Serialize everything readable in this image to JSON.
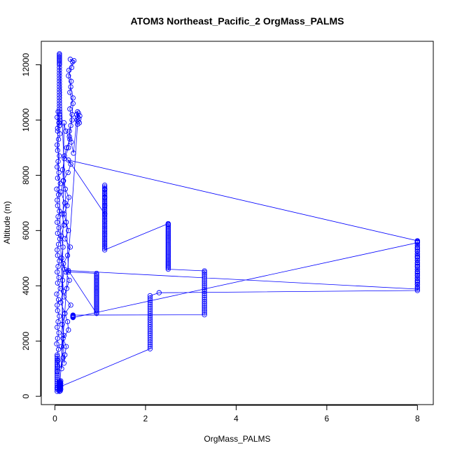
{
  "chart_data": {
    "type": "scatter",
    "style": "points-and-lines",
    "title": "ATOM3 Northeast_Pacific_2 OrgMass_PALMS",
    "xlabel": "OrgMass_PALMS",
    "ylabel": "Altitude (m)",
    "xlim": [
      -0.3,
      8.35
    ],
    "ylim": [
      -300,
      12850
    ],
    "xticks": [
      0,
      2,
      4,
      6,
      8
    ],
    "xtick_labels": [
      "0",
      "2",
      "4",
      "6",
      "8"
    ],
    "yticks": [
      0,
      2000,
      4000,
      6000,
      8000,
      10000,
      12000
    ],
    "ytick_labels": [
      "0",
      "2000",
      "4000",
      "6000",
      "8000",
      "10000",
      "12000"
    ],
    "grid": false,
    "legend": "none",
    "marker": "open-circle",
    "color": "#0000ff",
    "series": [
      {
        "x": [
          0.05,
          0.05,
          0.05,
          0.05,
          0.05,
          0.05,
          0.05,
          0.05,
          0.05,
          0.05,
          0.05,
          0.05,
          0.05,
          0.05,
          0.05,
          0.05,
          0.05,
          0.05,
          0.05,
          0.05,
          2.1,
          2.1,
          2.1,
          2.1,
          2.1,
          2.1,
          2.1,
          2.1,
          2.1,
          2.1,
          2.1,
          2.1,
          2.1,
          2.1,
          2.1,
          2.1,
          2.1,
          2.1,
          2.1,
          2.1,
          2.1,
          2.1,
          2.1,
          2.1,
          2.1,
          2.3,
          8.0,
          8.0,
          8.0,
          8.0,
          8.0,
          8.0,
          8.0,
          8.0,
          8.0,
          8.0,
          8.0,
          8.0,
          8.0,
          8.0,
          8.0,
          8.0,
          8.0,
          8.0,
          8.0,
          8.0,
          0.4,
          0.4,
          0.4,
          0.4,
          0.4,
          0.4,
          0.4,
          0.4,
          0.4,
          0.4,
          3.3,
          3.3,
          3.3,
          3.3,
          3.3,
          3.3,
          3.3,
          3.3,
          3.3,
          3.3,
          3.3,
          3.3,
          3.3,
          3.3,
          3.3,
          3.3,
          3.3,
          3.3,
          3.3,
          3.3,
          3.3,
          3.3,
          3.3,
          3.3,
          2.5,
          2.5,
          2.5,
          2.5,
          2.5,
          2.5,
          2.5,
          2.5,
          2.5,
          2.5,
          2.5,
          2.5,
          2.5,
          2.5,
          2.5,
          2.5,
          2.5,
          2.5,
          2.5,
          2.5,
          2.5,
          2.5,
          2.5,
          2.5,
          2.5,
          2.5,
          2.5,
          2.5,
          2.5,
          2.5,
          2.5,
          2.5,
          2.5,
          2.5,
          2.5,
          1.1,
          1.1,
          1.1,
          1.1,
          1.1,
          1.1,
          1.1,
          1.1,
          1.1,
          1.1,
          1.1,
          1.1,
          1.1,
          1.1,
          1.1,
          1.1,
          1.1,
          1.1,
          1.1,
          1.1,
          1.1,
          1.1,
          1.1,
          1.1,
          1.1,
          1.1,
          1.1,
          1.1,
          1.1,
          1.1,
          1.1,
          1.1,
          1.1,
          1.1,
          1.1,
          1.1,
          1.1,
          1.1,
          1.1,
          1.1,
          1.1,
          1.1,
          1.1,
          1.1,
          0.3,
          8.0,
          8.0,
          8.0,
          8.0,
          8.0,
          8.0,
          8.0,
          8.0,
          8.0,
          8.0,
          8.0,
          8.0,
          8.0,
          8.0,
          8.0,
          8.0,
          8.0,
          8.0,
          8.0,
          8.0,
          8.0,
          8.0,
          8.0,
          0.3,
          0.92,
          0.92,
          0.92,
          0.92,
          0.92,
          0.92,
          0.92,
          0.92,
          0.92,
          0.92,
          0.92,
          0.92,
          0.92,
          0.92,
          0.92,
          0.92,
          0.92,
          0.92,
          0.92,
          0.92,
          0.92,
          0.92,
          0.92,
          0.92,
          0.92,
          0.92,
          0.92,
          0.92,
          0.92,
          0.92,
          0.3,
          0.1,
          0.1,
          0.1,
          0.1,
          0.1,
          0.1,
          0.1,
          0.1,
          0.1,
          0.1,
          0.1,
          0.1,
          0.1,
          0.1,
          0.1,
          0.1,
          0.1,
          0.1,
          0.1,
          0.1,
          0.1,
          0.1,
          0.1,
          0.1,
          0.1,
          0.1,
          0.1,
          0.1,
          0.1,
          0.1,
          0.1
        ],
        "y": [
          180,
          250,
          320,
          390,
          460,
          530,
          600,
          670,
          740,
          810,
          880,
          950,
          1020,
          1090,
          1160,
          1230,
          1300,
          1370,
          1440,
          300,
          1720,
          1800,
          1880,
          1960,
          2040,
          2120,
          2200,
          2280,
          2360,
          2440,
          2520,
          2600,
          2680,
          2760,
          2840,
          2920,
          3000,
          3080,
          3160,
          3240,
          3320,
          3400,
          3480,
          3560,
          3640,
          3750,
          3830,
          3940,
          4050,
          4160,
          4270,
          4380,
          4490,
          4600,
          4710,
          4820,
          4930,
          5040,
          5150,
          5260,
          5370,
          5480,
          5590,
          5630,
          5600,
          5560,
          2850,
          2860,
          2870,
          2880,
          2890,
          2900,
          2910,
          2920,
          2930,
          2940,
          2950,
          3020,
          3090,
          3160,
          3230,
          3300,
          3370,
          3440,
          3510,
          3580,
          3650,
          3720,
          3790,
          3860,
          3930,
          4000,
          4070,
          4140,
          4210,
          4280,
          4350,
          4420,
          4490,
          4540,
          4600,
          4650,
          4700,
          4750,
          4800,
          4850,
          4900,
          4950,
          5000,
          5050,
          5100,
          5150,
          5200,
          5250,
          5300,
          5350,
          5400,
          5450,
          5500,
          5550,
          5600,
          5650,
          5700,
          5750,
          5800,
          5850,
          5900,
          5950,
          6000,
          6050,
          6100,
          6150,
          6200,
          6230,
          6250,
          5300,
          5360,
          5420,
          5480,
          5540,
          5600,
          5660,
          5720,
          5780,
          5840,
          5900,
          5960,
          6020,
          6080,
          6140,
          6200,
          6260,
          6320,
          6380,
          6440,
          6500,
          6560,
          6620,
          6680,
          6740,
          6800,
          6860,
          6920,
          6980,
          7040,
          7100,
          7160,
          7220,
          7280,
          7340,
          7400,
          7460,
          7520,
          7580,
          7640,
          7500,
          7200,
          6900,
          6600,
          8550,
          5630,
          5560,
          5480,
          5400,
          5320,
          5240,
          5160,
          5080,
          5000,
          4920,
          4840,
          4760,
          4680,
          4600,
          4520,
          4440,
          4360,
          4280,
          4200,
          4120,
          4040,
          3960,
          3880,
          4550,
          3000,
          3050,
          3100,
          3150,
          3200,
          3250,
          3300,
          3350,
          3400,
          3450,
          3500,
          3550,
          3600,
          3650,
          3700,
          3750,
          3800,
          3850,
          3900,
          3950,
          4000,
          4050,
          4100,
          4150,
          4200,
          4250,
          4300,
          4350,
          4400,
          4450,
          4500,
          12400,
          12350,
          12300,
          12250,
          12200,
          12150,
          12100,
          12050,
          12000,
          11900,
          11800,
          11700,
          11600,
          11500,
          11400,
          11300,
          11200,
          11100,
          11000,
          10900,
          10800,
          10700,
          10600,
          10500,
          10400,
          10300,
          10200,
          10100,
          10000,
          9900,
          9800
        ]
      },
      {
        "x": [
          0.05,
          0.06,
          0.07,
          0.05,
          0.08,
          0.04,
          0.06,
          0.09,
          0.05,
          0.07,
          0.1,
          0.06,
          0.05,
          0.08,
          0.04,
          0.12,
          0.06,
          0.09,
          0.05,
          0.07,
          0.1,
          0.06,
          0.05,
          0.08,
          0.11,
          0.06,
          0.09,
          0.05,
          0.07,
          0.1,
          0.06,
          0.05,
          0.08,
          0.04,
          0.12,
          0.06,
          0.09,
          0.05,
          0.07,
          0.1,
          0.06,
          0.05,
          0.08,
          0.11,
          0.06,
          0.09,
          0.05,
          0.07,
          0.1,
          0.06,
          0.2,
          0.22,
          0.25,
          0.18,
          0.3,
          0.28,
          0.22,
          0.35,
          0.2,
          0.26,
          0.32,
          0.24,
          0.19,
          0.28,
          0.34,
          0.22,
          0.3,
          0.25,
          0.2,
          0.27,
          0.31,
          0.23,
          0.18,
          0.29,
          0.35,
          0.21,
          0.26,
          0.33,
          0.24,
          0.2,
          0.15,
          0.18,
          0.14,
          0.2,
          0.16,
          0.22,
          0.13,
          0.19,
          0.17,
          0.21,
          0.15,
          0.18,
          0.14,
          0.2,
          0.16,
          0.22,
          0.13,
          0.19,
          0.17,
          0.21,
          0.3,
          0.32,
          0.35,
          0.38,
          0.4,
          0.33,
          0.36,
          0.31,
          0.39,
          0.34,
          0.42,
          0.37,
          0.3,
          0.35,
          0.4,
          0.33,
          0.38,
          0.32,
          0.36,
          0.41,
          0.5,
          0.52,
          0.48,
          0.55,
          0.5,
          0.53,
          0.49,
          0.51,
          0.54,
          0.5,
          0.1,
          0.12,
          0.09,
          0.11,
          0.13,
          0.1,
          0.12,
          0.09,
          0.11,
          0.13,
          0.1,
          0.12,
          0.09,
          0.11,
          0.13,
          0.1,
          0.12,
          0.09,
          0.11,
          0.13
        ],
        "y": [
          900,
          1100,
          1300,
          1500,
          1700,
          1900,
          2100,
          2300,
          2500,
          2700,
          2900,
          3100,
          3300,
          3500,
          3700,
          3900,
          4100,
          4300,
          4500,
          4700,
          4900,
          5100,
          5300,
          5500,
          5700,
          5900,
          6100,
          6300,
          6500,
          6700,
          6900,
          7100,
          7300,
          7500,
          7700,
          7900,
          8100,
          8300,
          8500,
          8700,
          8900,
          9100,
          9300,
          9500,
          9700,
          9900,
          10100,
          10300,
          9800,
          9600,
          1200,
          1500,
          1800,
          2100,
          2400,
          2700,
          3000,
          3300,
          3600,
          3900,
          4200,
          4500,
          4800,
          5100,
          5400,
          5700,
          6000,
          6300,
          6600,
          6900,
          7200,
          7500,
          7800,
          8100,
          8400,
          8700,
          9000,
          9300,
          9600,
          9900,
          1000,
          1400,
          1800,
          2200,
          2600,
          3000,
          3400,
          3800,
          4200,
          4600,
          5000,
          5400,
          5800,
          6200,
          6600,
          7000,
          7400,
          7800,
          8200,
          8600,
          9000,
          9400,
          9800,
          10200,
          10600,
          11000,
          11400,
          11800,
          12100,
          12200,
          12150,
          11900,
          11600,
          11200,
          10800,
          10400,
          10000,
          9600,
          9200,
          8800,
          10300,
          10250,
          10200,
          10150,
          10100,
          10050,
          10000,
          9950,
          9900,
          9850,
          180,
          200,
          220,
          240,
          260,
          280,
          300,
          320,
          340,
          360,
          380,
          400,
          420,
          440,
          460,
          480,
          500,
          520,
          540,
          560
        ]
      }
    ]
  }
}
